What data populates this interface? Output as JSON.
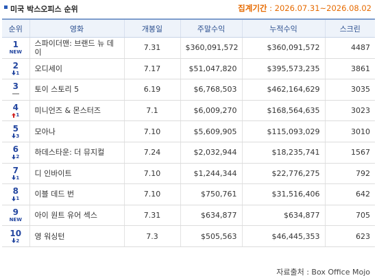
{
  "header": {
    "title": "미국 박스오피스 순위",
    "period_label": "집계기간",
    "period_separator": " : ",
    "period": "2026.07.31~2026.08.02"
  },
  "table": {
    "columns": [
      "순위",
      "영화",
      "개봉일",
      "주말수익",
      "누적수익",
      "스크린"
    ],
    "rows": [
      {
        "rank": "1",
        "change": {
          "dir": "new",
          "label": "NEW"
        },
        "cells": [
          "스파이더맨: 브랜드 뉴 데이",
          "7.31",
          "$360,091,572",
          "$360,091,572",
          "4487"
        ]
      },
      {
        "rank": "2",
        "change": {
          "dir": "down",
          "label": "1"
        },
        "cells": [
          "오디세이",
          "7.17",
          "$51,047,820",
          "$395,573,235",
          "3861"
        ]
      },
      {
        "rank": "3",
        "change": {
          "dir": "same"
        },
        "cells": [
          "토이 스토리 5",
          "6.19",
          "$6,768,503",
          "$462,164,629",
          "3035"
        ]
      },
      {
        "rank": "4",
        "change": {
          "dir": "up",
          "label": "1"
        },
        "cells": [
          "미니언즈 & 몬스터즈",
          "7.1",
          "$6,009,270",
          "$168,564,635",
          "3023"
        ]
      },
      {
        "rank": "5",
        "change": {
          "dir": "down",
          "label": "3"
        },
        "cells": [
          "모아나",
          "7.10",
          "$5,609,905",
          "$115,093,029",
          "3010"
        ]
      },
      {
        "rank": "6",
        "change": {
          "dir": "down",
          "label": "2"
        },
        "cells": [
          "하데스타운: 더 뮤지컬",
          "7.24",
          "$2,032,944",
          "$18,235,741",
          "1567"
        ]
      },
      {
        "rank": "7",
        "change": {
          "dir": "down",
          "label": "1"
        },
        "cells": [
          "디 인바이트",
          "7.10",
          "$1,244,344",
          "$22,776,275",
          "792"
        ]
      },
      {
        "rank": "8",
        "change": {
          "dir": "down",
          "label": "1"
        },
        "cells": [
          "이블 데드 번",
          "7.10",
          "$750,761",
          "$31,516,406",
          "642"
        ]
      },
      {
        "rank": "9",
        "change": {
          "dir": "new",
          "label": "NEW"
        },
        "cells": [
          "아이 원트 유어 섹스",
          "7.31",
          "$634,877",
          "$634,877",
          "705"
        ]
      },
      {
        "rank": "10",
        "change": {
          "dir": "down",
          "label": "2"
        },
        "cells": [
          "영 워싱턴",
          "7.3",
          "$505,563",
          "$46,445,353",
          "623"
        ]
      }
    ]
  },
  "footer": {
    "source": "자료출처 : Box Office Mojo"
  }
}
